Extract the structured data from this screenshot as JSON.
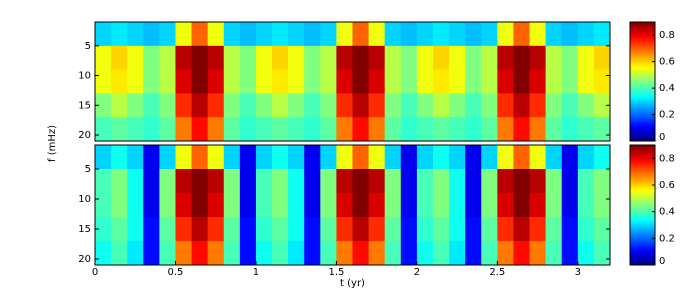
{
  "chart_data": [
    {
      "type": "heatmap",
      "ylabel": "f (mHz)",
      "x": [
        0,
        0.1,
        0.2,
        0.3,
        0.4,
        0.5,
        0.6,
        0.7,
        0.8,
        0.9,
        1,
        1.1,
        1.2,
        1.3,
        1.4,
        1.5,
        1.6,
        1.7,
        1.8,
        1.9,
        2,
        2.1,
        2.2,
        2.3,
        2.4,
        2.5,
        2.6,
        2.7,
        2.8,
        2.9,
        3,
        3.1,
        3.2
      ],
      "y": [
        1,
        5,
        9,
        13,
        17,
        21
      ],
      "z": [
        [
          0.3,
          0.32,
          0.3,
          0.28,
          0.3,
          0.55,
          0.7,
          0.55,
          0.3,
          0.28,
          0.3,
          0.32,
          0.3,
          0.28,
          0.3,
          0.55,
          0.7,
          0.55,
          0.3,
          0.28,
          0.3,
          0.32,
          0.3,
          0.28,
          0.3,
          0.55,
          0.7,
          0.55,
          0.3,
          0.28,
          0.3,
          0.32
        ],
        [
          0.55,
          0.6,
          0.55,
          0.45,
          0.5,
          0.85,
          0.92,
          0.85,
          0.5,
          0.45,
          0.55,
          0.6,
          0.55,
          0.45,
          0.5,
          0.85,
          0.92,
          0.85,
          0.5,
          0.45,
          0.55,
          0.6,
          0.55,
          0.45,
          0.5,
          0.85,
          0.92,
          0.85,
          0.5,
          0.45,
          0.55,
          0.6
        ],
        [
          0.55,
          0.58,
          0.55,
          0.45,
          0.5,
          0.82,
          0.9,
          0.82,
          0.5,
          0.45,
          0.55,
          0.58,
          0.55,
          0.45,
          0.5,
          0.82,
          0.9,
          0.82,
          0.5,
          0.45,
          0.55,
          0.58,
          0.55,
          0.45,
          0.5,
          0.82,
          0.9,
          0.82,
          0.5,
          0.45,
          0.55,
          0.58
        ],
        [
          0.45,
          0.5,
          0.45,
          0.4,
          0.45,
          0.75,
          0.85,
          0.75,
          0.45,
          0.4,
          0.45,
          0.5,
          0.45,
          0.4,
          0.45,
          0.75,
          0.85,
          0.75,
          0.45,
          0.4,
          0.45,
          0.5,
          0.45,
          0.4,
          0.45,
          0.75,
          0.85,
          0.75,
          0.45,
          0.4,
          0.45,
          0.5
        ],
        [
          0.4,
          0.42,
          0.4,
          0.38,
          0.42,
          0.68,
          0.78,
          0.68,
          0.42,
          0.38,
          0.4,
          0.42,
          0.4,
          0.38,
          0.42,
          0.68,
          0.78,
          0.68,
          0.42,
          0.38,
          0.4,
          0.42,
          0.4,
          0.38,
          0.42,
          0.68,
          0.78,
          0.68,
          0.42,
          0.38,
          0.4,
          0.42
        ]
      ],
      "xlim": [
        0,
        3.2
      ],
      "ylim": [
        1,
        21
      ],
      "yticks": [
        5,
        10,
        15,
        20
      ],
      "clim": [
        0,
        0.9
      ],
      "cticks": [
        0,
        0.2,
        0.4,
        0.6,
        0.8
      ],
      "colormap": "jet"
    },
    {
      "type": "heatmap",
      "xlabel": "t (yr)",
      "x": [
        0,
        0.1,
        0.2,
        0.3,
        0.4,
        0.5,
        0.6,
        0.7,
        0.8,
        0.9,
        1,
        1.1,
        1.2,
        1.3,
        1.4,
        1.5,
        1.6,
        1.7,
        1.8,
        1.9,
        2,
        2.1,
        2.2,
        2.3,
        2.4,
        2.5,
        2.6,
        2.7,
        2.8,
        2.9,
        3,
        3.1,
        3.2
      ],
      "y": [
        1,
        5,
        9,
        13,
        17,
        21
      ],
      "z": [
        [
          0.3,
          0.35,
          0.3,
          0.1,
          0.3,
          0.55,
          0.7,
          0.55,
          0.3,
          0.1,
          0.3,
          0.35,
          0.3,
          0.1,
          0.3,
          0.55,
          0.7,
          0.55,
          0.3,
          0.1,
          0.3,
          0.35,
          0.3,
          0.1,
          0.3,
          0.55,
          0.7,
          0.55,
          0.3,
          0.1,
          0.3,
          0.35
        ],
        [
          0.4,
          0.45,
          0.35,
          0.1,
          0.45,
          0.85,
          0.92,
          0.85,
          0.45,
          0.1,
          0.4,
          0.45,
          0.35,
          0.1,
          0.45,
          0.85,
          0.92,
          0.85,
          0.45,
          0.1,
          0.4,
          0.45,
          0.35,
          0.1,
          0.45,
          0.85,
          0.92,
          0.85,
          0.45,
          0.1,
          0.4,
          0.45
        ],
        [
          0.4,
          0.45,
          0.35,
          0.1,
          0.45,
          0.82,
          0.9,
          0.82,
          0.45,
          0.1,
          0.4,
          0.45,
          0.35,
          0.1,
          0.45,
          0.82,
          0.9,
          0.82,
          0.45,
          0.1,
          0.4,
          0.45,
          0.35,
          0.1,
          0.45,
          0.82,
          0.9,
          0.82,
          0.45,
          0.1,
          0.4,
          0.45
        ],
        [
          0.38,
          0.42,
          0.35,
          0.12,
          0.42,
          0.75,
          0.85,
          0.75,
          0.42,
          0.12,
          0.38,
          0.42,
          0.35,
          0.12,
          0.42,
          0.75,
          0.85,
          0.75,
          0.42,
          0.12,
          0.38,
          0.42,
          0.35,
          0.12,
          0.42,
          0.75,
          0.85,
          0.75,
          0.42,
          0.12,
          0.38,
          0.42
        ],
        [
          0.35,
          0.4,
          0.32,
          0.12,
          0.4,
          0.68,
          0.78,
          0.68,
          0.4,
          0.12,
          0.35,
          0.4,
          0.32,
          0.12,
          0.4,
          0.68,
          0.78,
          0.68,
          0.4,
          0.12,
          0.35,
          0.4,
          0.32,
          0.12,
          0.4,
          0.68,
          0.78,
          0.68,
          0.4,
          0.12,
          0.35,
          0.4
        ]
      ],
      "xlim": [
        0,
        3.2
      ],
      "ylim": [
        1,
        21
      ],
      "xticks": [
        0,
        0.5,
        1,
        1.5,
        2,
        2.5,
        3
      ],
      "yticks": [
        5,
        10,
        15,
        20
      ],
      "clim": [
        0,
        0.9
      ],
      "cticks": [
        0,
        0.2,
        0.4,
        0.6,
        0.8
      ],
      "colormap": "jet"
    }
  ]
}
